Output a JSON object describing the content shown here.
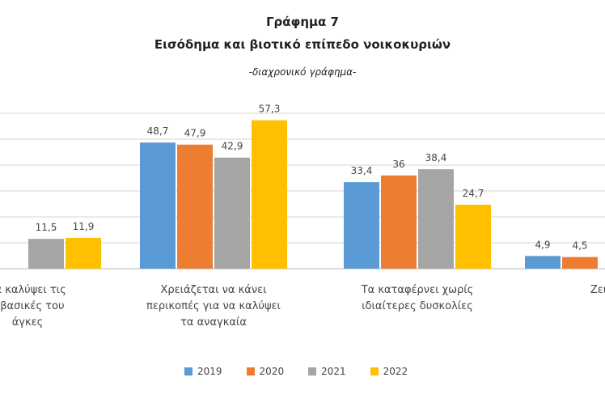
{
  "chart_data": {
    "type": "bar",
    "title": "Γράφημα 7",
    "subtitle": "Εισόδημα και βιοτικό επίπεδο νοικοκυριών",
    "note": "-διαχρονικό γράφημα-",
    "categories": [
      [
        "να καλύψει τις",
        "ς βασικές του",
        "άγκες"
      ],
      [
        "Χρειάζεται να κάνει",
        "περικοπές για να καλύψει",
        "τα αναγκαία"
      ],
      [
        "Τα καταφέρνει χωρίς",
        "ιδιαίτερες δυσκολίες"
      ],
      [
        "Ζει"
      ]
    ],
    "series": [
      {
        "name": "2019",
        "color": "#5B9BD5",
        "values": [
          null,
          48.7,
          33.4,
          4.9
        ],
        "labels": [
          "",
          "48,7",
          "33,4",
          "4,9"
        ]
      },
      {
        "name": "2020",
        "color": "#ED7D31",
        "values": [
          null,
          47.9,
          36,
          4.5
        ],
        "labels": [
          "",
          "47,9",
          "36",
          "4,5"
        ]
      },
      {
        "name": "2021",
        "color": "#A5A5A5",
        "values": [
          11.5,
          42.9,
          38.4,
          null
        ],
        "labels": [
          "11,5",
          "42,9",
          "38,4",
          ""
        ]
      },
      {
        "name": "2022",
        "color": "#FFC000",
        "values": [
          11.9,
          57.3,
          24.7,
          null
        ],
        "labels": [
          "11,9",
          "57,3",
          "24,7",
          ""
        ]
      }
    ],
    "ylim": [
      0,
      60
    ],
    "grid": true,
    "legend_position": "bottom"
  }
}
